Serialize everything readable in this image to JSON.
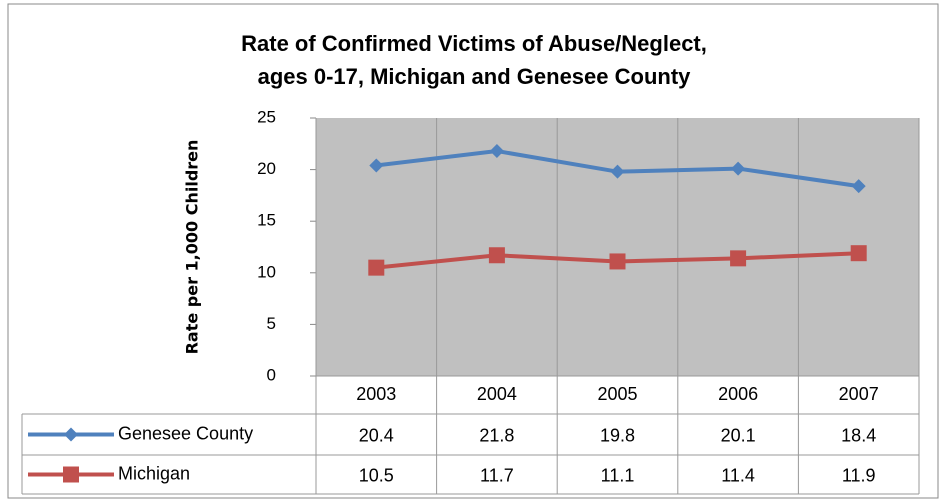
{
  "chart_data": {
    "type": "line",
    "title": [
      "Rate of Confirmed Victims of Abuse/Neglect,",
      "ages 0-17, Michigan and Genesee County"
    ],
    "y_label": "Rate per 1,000 Children",
    "categories": [
      "2003",
      "2004",
      "2005",
      "2006",
      "2007"
    ],
    "series": [
      {
        "name": "Genesee County",
        "color": "#4f81bd",
        "marker": "diamond",
        "values": [
          20.4,
          21.8,
          19.8,
          20.1,
          18.4
        ]
      },
      {
        "name": "Michigan",
        "color": "#c0504d",
        "marker": "square",
        "values": [
          10.5,
          11.7,
          11.1,
          11.4,
          11.9
        ]
      }
    ],
    "ylim": [
      0,
      25
    ],
    "yticks": [
      0,
      5,
      10,
      15,
      20,
      25
    ],
    "grid": false,
    "data_table": true
  }
}
